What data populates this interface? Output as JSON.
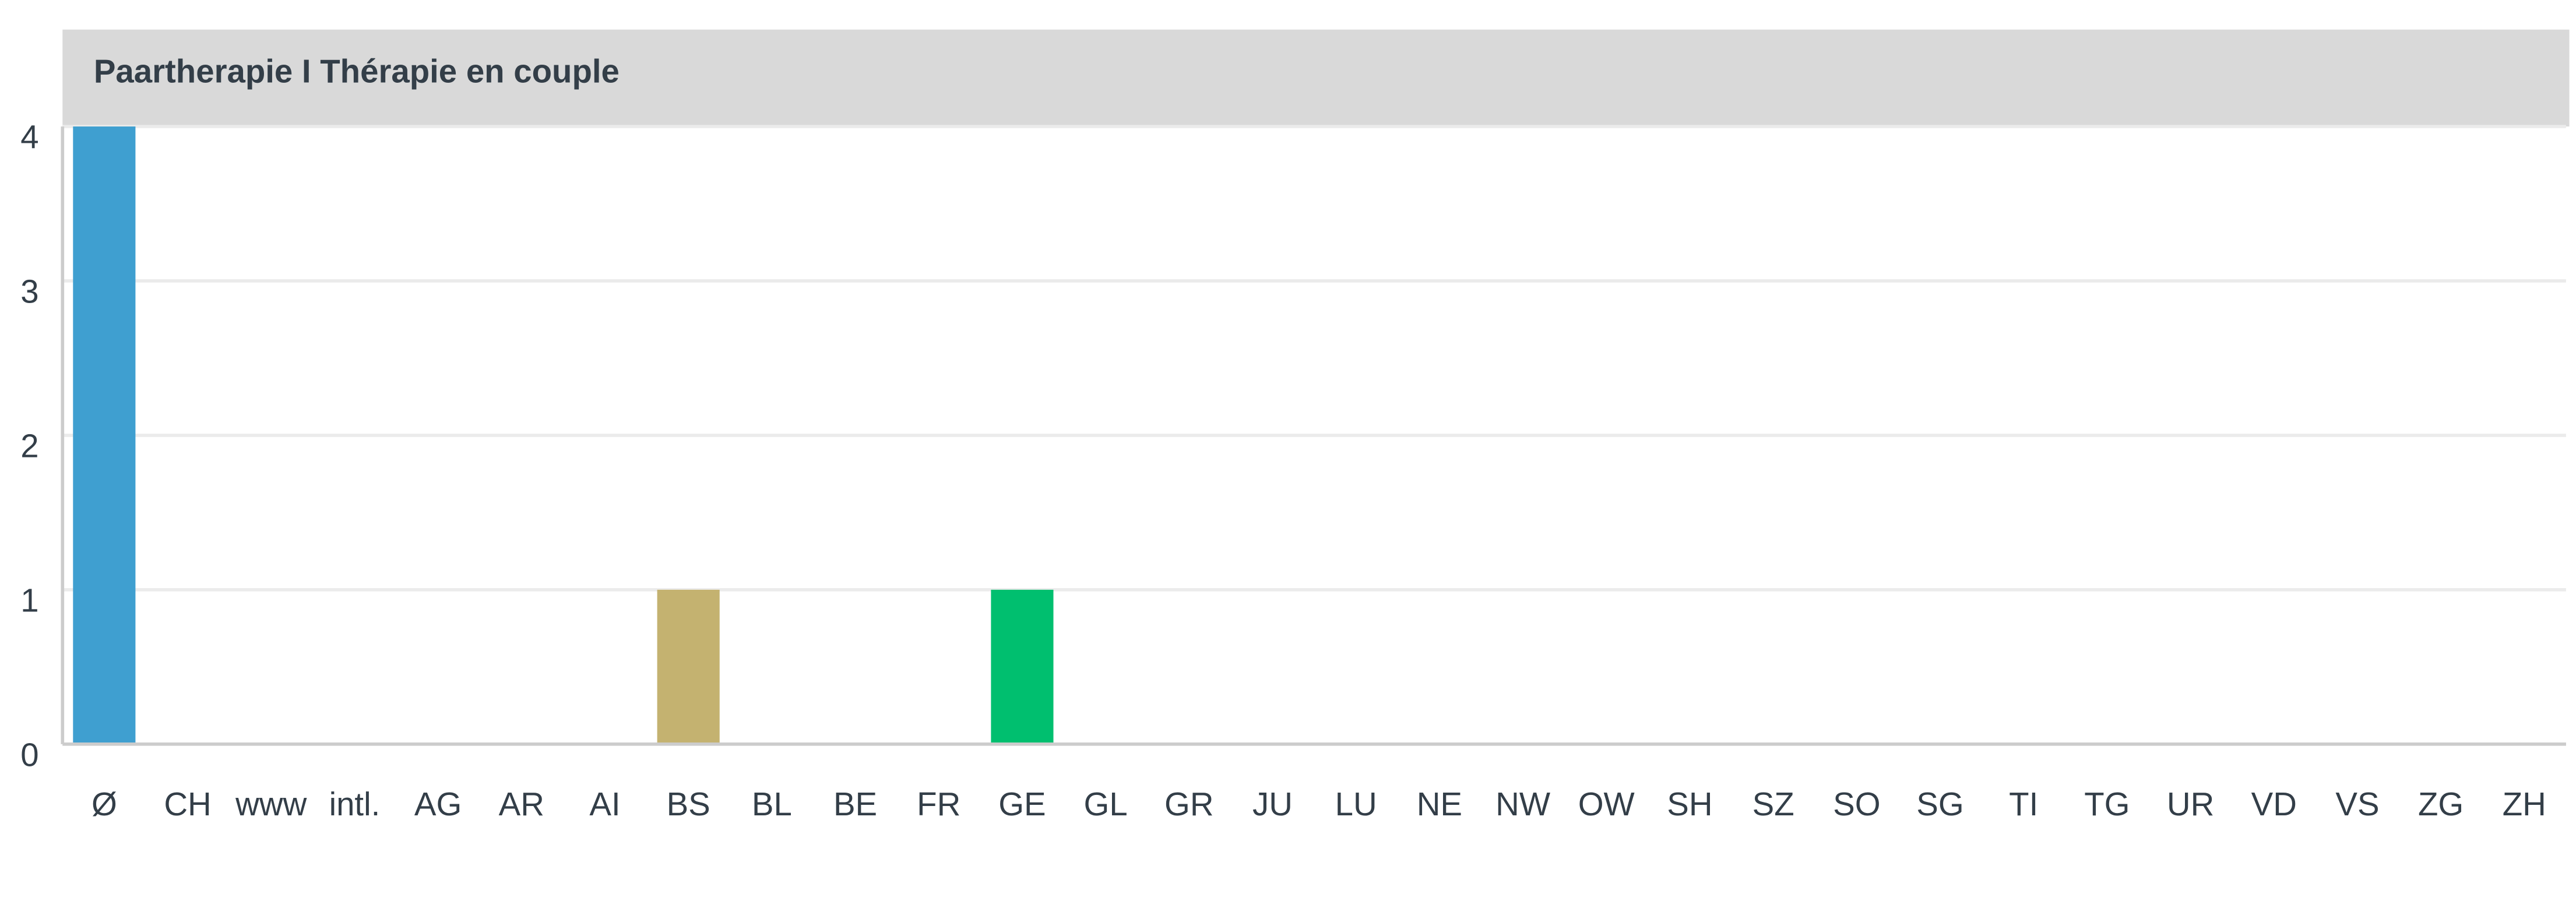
{
  "chart_data": {
    "type": "bar",
    "title": "Paartherapie I Thérapie en couple",
    "categories": [
      "Ø",
      "CH",
      "www",
      "intl.",
      "AG",
      "AR",
      "AI",
      "BS",
      "BL",
      "BE",
      "FR",
      "GE",
      "GL",
      "GR",
      "JU",
      "LU",
      "NE",
      "NW",
      "OW",
      "SH",
      "SZ",
      "SO",
      "SG",
      "TI",
      "TG",
      "UR",
      "VD",
      "VS",
      "ZG",
      "ZH"
    ],
    "values": [
      4,
      0,
      0,
      0,
      0,
      0,
      0,
      1,
      0,
      0,
      0,
      1,
      0,
      0,
      0,
      0,
      0,
      0,
      0,
      0,
      0,
      0,
      0,
      0,
      0,
      0,
      0,
      0,
      0,
      0
    ],
    "colors": [
      "#3f9fd0",
      "#3f9fd0",
      "#3f9fd0",
      "#3f9fd0",
      "#3f9fd0",
      "#3f9fd0",
      "#3f9fd0",
      "#c4b270",
      "#3f9fd0",
      "#3f9fd0",
      "#3f9fd0",
      "#00bf6f",
      "#3f9fd0",
      "#3f9fd0",
      "#3f9fd0",
      "#3f9fd0",
      "#3f9fd0",
      "#3f9fd0",
      "#3f9fd0",
      "#3f9fd0",
      "#3f9fd0",
      "#3f9fd0",
      "#3f9fd0",
      "#3f9fd0",
      "#3f9fd0",
      "#3f9fd0",
      "#3f9fd0",
      "#3f9fd0",
      "#3f9fd0",
      "#3f9fd0"
    ],
    "ylim": [
      0,
      4
    ],
    "yticks": [
      0,
      1,
      2,
      3,
      4
    ],
    "grid": true
  }
}
